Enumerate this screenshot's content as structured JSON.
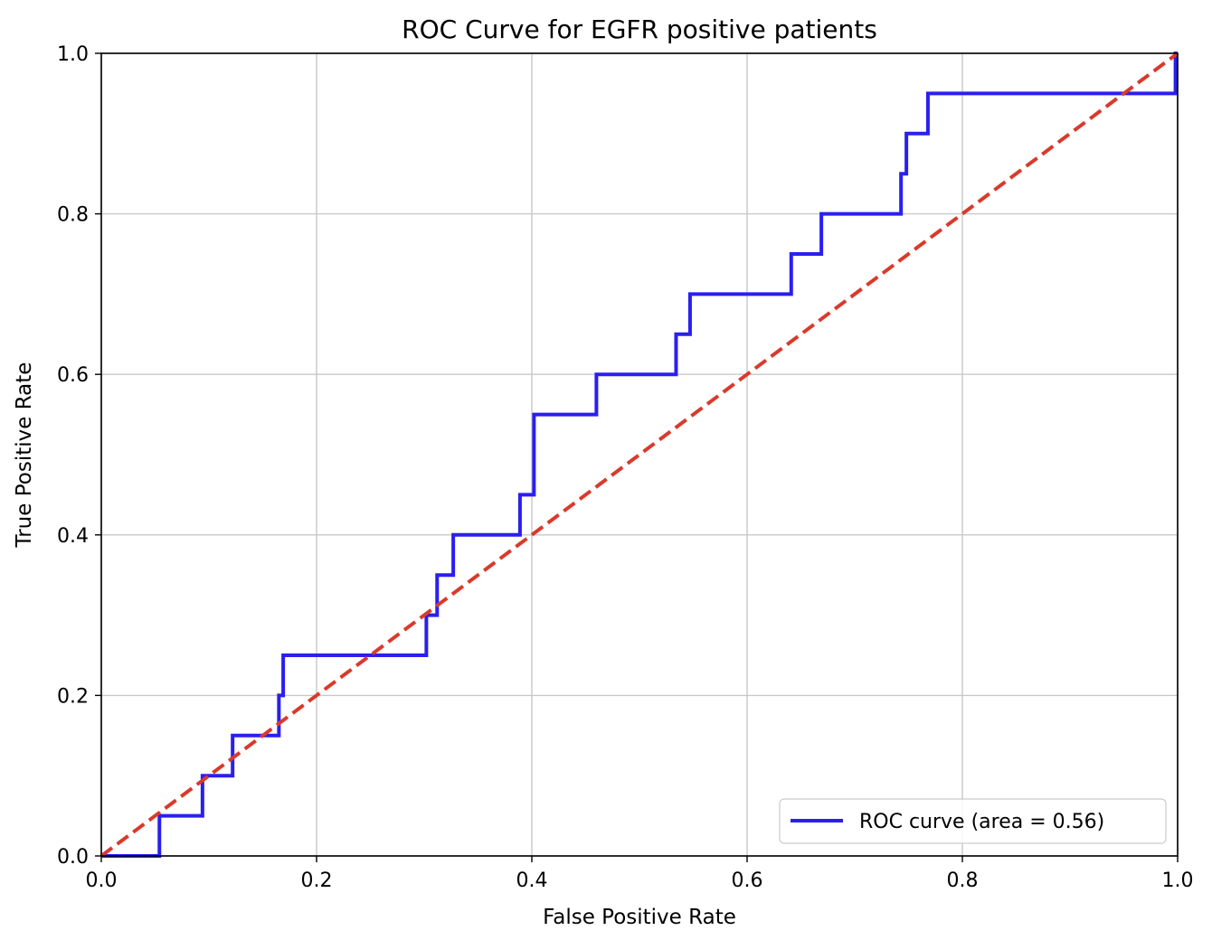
{
  "chart_data": {
    "type": "line",
    "title": "ROC Curve for EGFR positive patients",
    "xlabel": "False Positive Rate",
    "ylabel": "True Positive Rate",
    "xlim": [
      0.0,
      1.0
    ],
    "ylim": [
      0.0,
      1.0
    ],
    "x_ticks": [
      "0.0",
      "0.2",
      "0.4",
      "0.6",
      "0.8",
      "1.0"
    ],
    "y_ticks": [
      "0.0",
      "0.2",
      "0.4",
      "0.6",
      "0.8",
      "1.0"
    ],
    "grid": true,
    "legend_placement": "lower right",
    "series": [
      {
        "name": "ROC curve (area = 0.56)",
        "color": "#2a1ff0",
        "line_style": "solid",
        "x": [
          0.0,
          0.054,
          0.054,
          0.094,
          0.094,
          0.122,
          0.122,
          0.165,
          0.165,
          0.169,
          0.169,
          0.302,
          0.302,
          0.312,
          0.312,
          0.327,
          0.327,
          0.389,
          0.389,
          0.402,
          0.402,
          0.46,
          0.46,
          0.534,
          0.534,
          0.547,
          0.547,
          0.641,
          0.641,
          0.669,
          0.669,
          0.743,
          0.743,
          0.748,
          0.748,
          0.768,
          0.768,
          0.998,
          0.998,
          1.0
        ],
        "y": [
          0.0,
          0.0,
          0.05,
          0.05,
          0.1,
          0.1,
          0.15,
          0.15,
          0.2,
          0.2,
          0.25,
          0.25,
          0.3,
          0.3,
          0.35,
          0.35,
          0.4,
          0.4,
          0.45,
          0.45,
          0.55,
          0.55,
          0.6,
          0.6,
          0.65,
          0.65,
          0.7,
          0.7,
          0.75,
          0.75,
          0.8,
          0.8,
          0.85,
          0.85,
          0.9,
          0.9,
          0.95,
          0.95,
          1.0,
          1.0
        ]
      },
      {
        "name": "",
        "color": "#d93a2b",
        "line_style": "dashed",
        "x": [
          0.0,
          1.0
        ],
        "y": [
          0.0,
          1.0
        ]
      }
    ],
    "legend": [
      "ROC curve (area = 0.56)"
    ]
  }
}
